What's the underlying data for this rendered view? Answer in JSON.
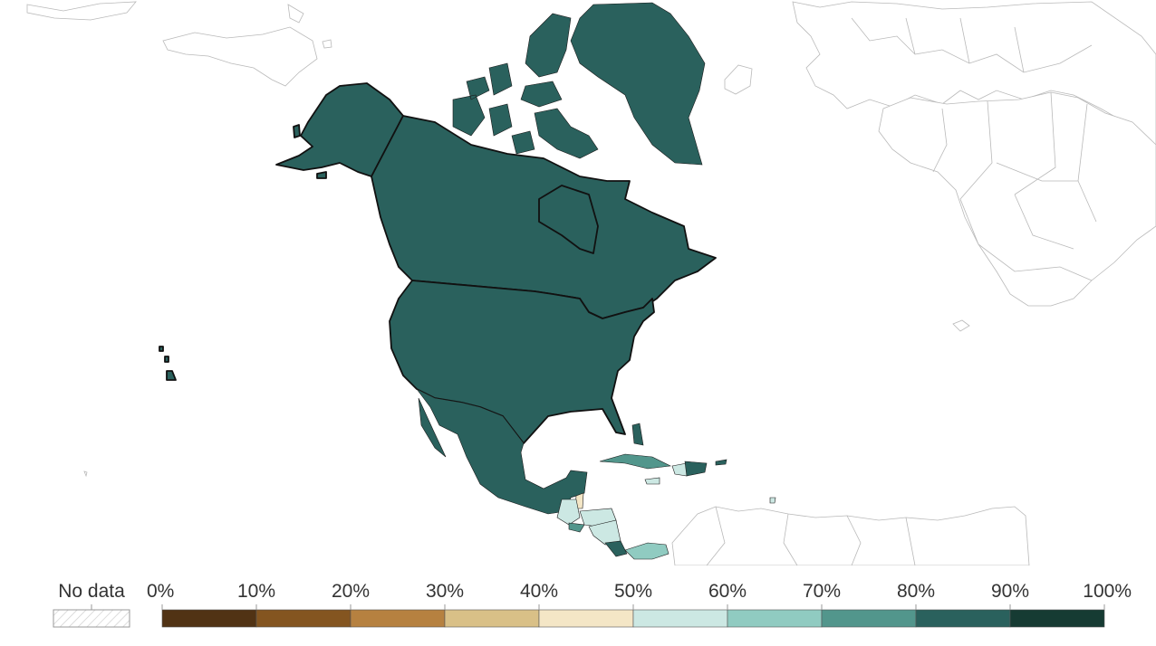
{
  "legend": {
    "no_data_label": "No data",
    "ticks": [
      "0%",
      "10%",
      "20%",
      "30%",
      "40%",
      "50%",
      "60%",
      "70%",
      "80%",
      "90%",
      "100%"
    ],
    "bins": [
      {
        "range": [
          0,
          10
        ],
        "color": "#513314"
      },
      {
        "range": [
          10,
          20
        ],
        "color": "#845520"
      },
      {
        "range": [
          20,
          30
        ],
        "color": "#b68140"
      },
      {
        "range": [
          30,
          40
        ],
        "color": "#d9c087"
      },
      {
        "range": [
          40,
          50
        ],
        "color": "#f4e6c6"
      },
      {
        "range": [
          50,
          60
        ],
        "color": "#cce8e3"
      },
      {
        "range": [
          60,
          70
        ],
        "color": "#90cbc1"
      },
      {
        "range": [
          70,
          80
        ],
        "color": "#52968c"
      },
      {
        "range": [
          80,
          90
        ],
        "color": "#2a615d"
      },
      {
        "range": [
          90,
          100
        ],
        "color": "#163b33"
      }
    ]
  },
  "map": {
    "region": "North America",
    "regions": [
      {
        "id": "greenland",
        "bin": 8
      },
      {
        "id": "canada",
        "bin": 8
      },
      {
        "id": "alaska",
        "bin": 8
      },
      {
        "id": "united-states",
        "bin": 8
      },
      {
        "id": "hawaii",
        "bin": 8
      },
      {
        "id": "mexico",
        "bin": 8
      },
      {
        "id": "belize",
        "bin": 4
      },
      {
        "id": "guatemala",
        "bin": 5
      },
      {
        "id": "el-salvador",
        "bin": 7
      },
      {
        "id": "honduras",
        "bin": 5
      },
      {
        "id": "nicaragua",
        "bin": 5
      },
      {
        "id": "costa-rica",
        "bin": 8
      },
      {
        "id": "panama",
        "bin": 6
      },
      {
        "id": "cuba",
        "bin": 7
      },
      {
        "id": "jamaica",
        "bin": 5
      },
      {
        "id": "haiti",
        "bin": 5
      },
      {
        "id": "dominican-republic",
        "bin": 8
      },
      {
        "id": "puerto-rico",
        "bin": 8
      },
      {
        "id": "trinidad",
        "bin": 5
      }
    ]
  }
}
